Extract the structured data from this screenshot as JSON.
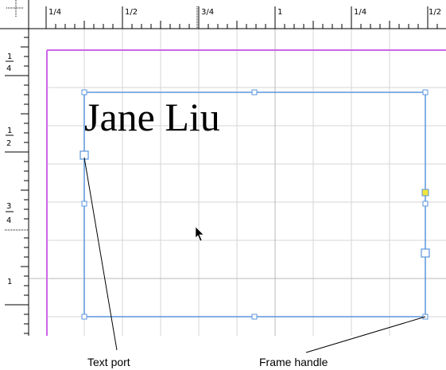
{
  "ruler": {
    "horizontal_labels": [
      "1/4",
      "1/2",
      "3/4",
      "1",
      "1/4",
      "1/2"
    ],
    "vertical_labels": [
      {
        "num": "1",
        "den": "4"
      },
      {
        "num": "1",
        "den": "2"
      },
      {
        "num": "3",
        "den": "4"
      },
      {
        "num": "1",
        "den": ""
      }
    ]
  },
  "document": {
    "text_frame_content": "Jane Liu",
    "margin_guide_color": "#CC66E6",
    "frame_color": "#5A96DC",
    "grid_color": "#D6D6D6"
  },
  "callouts": {
    "text_port_label": "Text port",
    "frame_handle_label": "Frame handle"
  },
  "icons": {
    "cursor": "arrow-pointer-icon"
  }
}
